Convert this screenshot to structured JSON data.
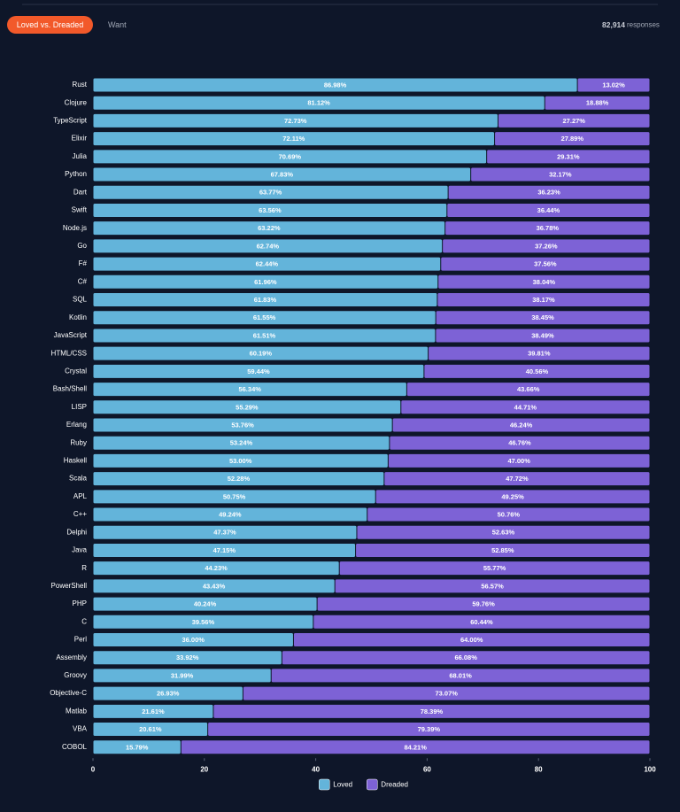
{
  "tabs": [
    "Loved vs. Dreaded",
    "Want"
  ],
  "responses": {
    "count": "82,914",
    "label": "responses"
  },
  "chart_data": {
    "type": "stacked-bar-horizontal",
    "categories": [
      "Rust",
      "Clojure",
      "TypeScript",
      "Elixir",
      "Julia",
      "Python",
      "Dart",
      "Swift",
      "Node.js",
      "Go",
      "F#",
      "C#",
      "SQL",
      "Kotlin",
      "JavaScript",
      "HTML/CSS",
      "Crystal",
      "Bash/Shell",
      "LISP",
      "Erlang",
      "Ruby",
      "Haskell",
      "Scala",
      "APL",
      "C++",
      "Delphi",
      "Java",
      "R",
      "PowerShell",
      "PHP",
      "C",
      "Perl",
      "Assembly",
      "Groovy",
      "Objective-C",
      "Matlab",
      "VBA",
      "COBOL"
    ],
    "series": [
      {
        "name": "Loved",
        "color": "#63b4da",
        "values": [
          86.98,
          81.12,
          72.73,
          72.11,
          70.69,
          67.83,
          63.77,
          63.56,
          63.22,
          62.74,
          62.44,
          61.96,
          61.83,
          61.55,
          61.51,
          60.19,
          59.44,
          56.34,
          55.29,
          53.76,
          53.24,
          53.0,
          52.28,
          50.75,
          49.24,
          47.37,
          47.15,
          44.23,
          43.43,
          40.24,
          39.56,
          36.0,
          33.92,
          31.99,
          26.93,
          21.61,
          20.61,
          15.79
        ],
        "value_labels": [
          "86.98%",
          "81.12%",
          "72.73%",
          "72.11%",
          "70.69%",
          "67.83%",
          "63.77%",
          "63.56%",
          "63.22%",
          "62.74%",
          "62.44%",
          "61.96%",
          "61.83%",
          "61.55%",
          "61.51%",
          "60.19%",
          "59.44%",
          "56.34%",
          "55.29%",
          "53.76%",
          "53.24%",
          "53.00%",
          "52.28%",
          "50.75%",
          "49.24%",
          "47.37%",
          "47.15%",
          "44.23%",
          "43.43%",
          "40.24%",
          "39.56%",
          "36.00%",
          "33.92%",
          "31.99%",
          "26.93%",
          "21.61%",
          "20.61%",
          "15.79%"
        ]
      },
      {
        "name": "Dreaded",
        "color": "#7d62d6",
        "values": [
          13.02,
          18.88,
          27.27,
          27.89,
          29.31,
          32.17,
          36.23,
          36.44,
          36.78,
          37.26,
          37.56,
          38.04,
          38.17,
          38.45,
          38.49,
          39.81,
          40.56,
          43.66,
          44.71,
          46.24,
          46.76,
          47.0,
          47.72,
          49.25,
          50.76,
          52.63,
          52.85,
          55.77,
          56.57,
          59.76,
          60.44,
          64.0,
          66.08,
          68.01,
          73.07,
          78.39,
          79.39,
          84.21
        ],
        "value_labels": [
          "13.02%",
          "18.88%",
          "27.27%",
          "27.89%",
          "29.31%",
          "32.17%",
          "36.23%",
          "36.44%",
          "36.78%",
          "37.26%",
          "37.56%",
          "38.04%",
          "38.17%",
          "38.45%",
          "38.49%",
          "39.81%",
          "40.56%",
          "43.66%",
          "44.71%",
          "46.24%",
          "46.76%",
          "47.00%",
          "47.72%",
          "49.25%",
          "50.76%",
          "52.63%",
          "52.85%",
          "55.77%",
          "56.57%",
          "59.76%",
          "60.44%",
          "64.00%",
          "66.08%",
          "68.01%",
          "73.07%",
          "78.39%",
          "79.39%",
          "84.21%"
        ]
      }
    ],
    "xlim": [
      0,
      100
    ],
    "xticks": [
      0,
      20,
      40,
      60,
      80,
      100
    ],
    "grid": false,
    "legend": "bottom"
  }
}
